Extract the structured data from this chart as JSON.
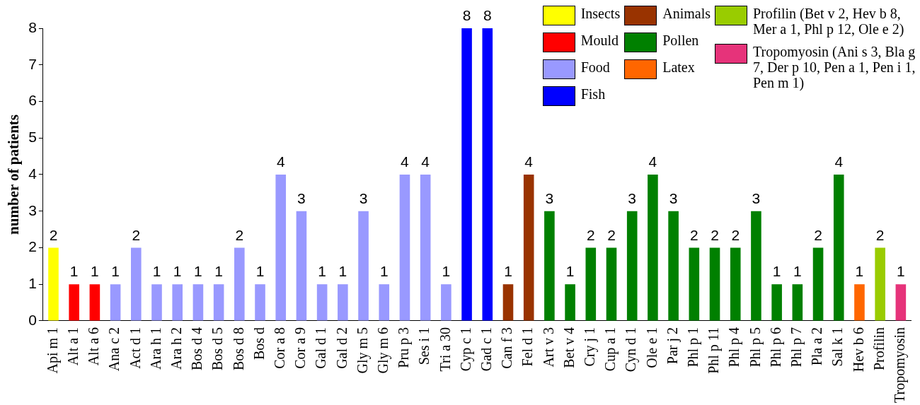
{
  "chart_data": {
    "type": "bar",
    "ylabel": "number of patients",
    "categories": [
      "Api m 1",
      "Alt a 1",
      "Alt a 6",
      "Ana c 2",
      "Act d 1",
      "Ara h 1",
      "Ara h 2",
      "Bos d 4",
      "Bos d 5",
      "Bos d 8",
      "Bos d",
      "Cor a 8",
      "Cor a 9",
      "Gal d 1",
      "Gal d 2",
      "Gly m 5",
      "Gly m 6",
      "Pru p 3",
      "Ses i 1",
      "Tri a 30",
      "Cyp c 1",
      "Gad c 1",
      "Can f 3",
      "Fel d 1",
      "Art v 3",
      "Bet v 4",
      "Cry j 1",
      "Cup a 1",
      "Cyn d 1",
      "Ole e 1",
      "Par j 2",
      "Phl p 1",
      "Phl p 11",
      "Phl p 4",
      "Phl p 5",
      "Phl p 6",
      "Phl p 7",
      "Pla a 2",
      "Sal k 1",
      "Hev b 6",
      "Profilin",
      "Tropomyosin"
    ],
    "series": [
      {
        "name": "Insects",
        "color": "#ffff00",
        "values": [
          2,
          null,
          null,
          null,
          null,
          null,
          null,
          null,
          null,
          null,
          null,
          null,
          null,
          null,
          null,
          null,
          null,
          null,
          null,
          null,
          null,
          null,
          null,
          null,
          null,
          null,
          null,
          null,
          null,
          null,
          null,
          null,
          null,
          null,
          null,
          null,
          null,
          null,
          null,
          null,
          null,
          null
        ]
      },
      {
        "name": "Mould",
        "color": "#ff0000",
        "values": [
          null,
          1,
          1,
          null,
          null,
          null,
          null,
          null,
          null,
          null,
          null,
          null,
          null,
          null,
          null,
          null,
          null,
          null,
          null,
          null,
          null,
          null,
          null,
          null,
          null,
          null,
          null,
          null,
          null,
          null,
          null,
          null,
          null,
          null,
          null,
          null,
          null,
          null,
          null,
          null,
          null,
          null
        ]
      },
      {
        "name": "Food",
        "color": "#9999ff",
        "values": [
          null,
          null,
          null,
          1,
          2,
          1,
          1,
          1,
          1,
          2,
          1,
          4,
          3,
          1,
          1,
          3,
          1,
          4,
          4,
          1,
          null,
          null,
          null,
          null,
          null,
          null,
          null,
          null,
          null,
          null,
          null,
          null,
          null,
          null,
          null,
          null,
          null,
          null,
          null,
          null,
          null,
          null
        ]
      },
      {
        "name": "Fish",
        "color": "#0000ff",
        "values": [
          null,
          null,
          null,
          null,
          null,
          null,
          null,
          null,
          null,
          null,
          null,
          null,
          null,
          null,
          null,
          null,
          null,
          null,
          null,
          null,
          8,
          8,
          null,
          null,
          null,
          null,
          null,
          null,
          null,
          null,
          null,
          null,
          null,
          null,
          null,
          null,
          null,
          null,
          null,
          null,
          null,
          null
        ]
      },
      {
        "name": "Animals",
        "color": "#993300",
        "values": [
          null,
          null,
          null,
          null,
          null,
          null,
          null,
          null,
          null,
          null,
          null,
          null,
          null,
          null,
          null,
          null,
          null,
          null,
          null,
          null,
          null,
          null,
          1,
          4,
          null,
          null,
          null,
          null,
          null,
          null,
          null,
          null,
          null,
          null,
          null,
          null,
          null,
          null,
          null,
          null,
          null,
          null
        ]
      },
      {
        "name": "Pollen",
        "color": "#008000",
        "values": [
          null,
          null,
          null,
          null,
          null,
          null,
          null,
          null,
          null,
          null,
          null,
          null,
          null,
          null,
          null,
          null,
          null,
          null,
          null,
          null,
          null,
          null,
          null,
          null,
          3,
          1,
          2,
          2,
          3,
          4,
          3,
          2,
          2,
          2,
          3,
          1,
          1,
          2,
          4,
          null,
          null,
          null
        ]
      },
      {
        "name": "Latex",
        "color": "#ff6600",
        "values": [
          null,
          null,
          null,
          null,
          null,
          null,
          null,
          null,
          null,
          null,
          null,
          null,
          null,
          null,
          null,
          null,
          null,
          null,
          null,
          null,
          null,
          null,
          null,
          null,
          null,
          null,
          null,
          null,
          null,
          null,
          null,
          null,
          null,
          null,
          null,
          null,
          null,
          null,
          null,
          1,
          null,
          null
        ]
      },
      {
        "name": "Profilin (Bet v 2, Hev b 8, Mer a 1, Phl p 12, Ole e 2)",
        "color": "#99cc00",
        "values": [
          null,
          null,
          null,
          null,
          null,
          null,
          null,
          null,
          null,
          null,
          null,
          null,
          null,
          null,
          null,
          null,
          null,
          null,
          null,
          null,
          null,
          null,
          null,
          null,
          null,
          null,
          null,
          null,
          null,
          null,
          null,
          null,
          null,
          null,
          null,
          null,
          null,
          null,
          null,
          null,
          2,
          null
        ]
      },
      {
        "name": "Tropomyosin (Ani s 3, Bla g 7, Der p 10, Pen a 1, Pen i 1, Pen m 1)",
        "color": "#e6337a",
        "values": [
          null,
          null,
          null,
          null,
          null,
          null,
          null,
          null,
          null,
          null,
          null,
          null,
          null,
          null,
          null,
          null,
          null,
          null,
          null,
          null,
          null,
          null,
          null,
          null,
          null,
          null,
          null,
          null,
          null,
          null,
          null,
          null,
          null,
          null,
          null,
          null,
          null,
          null,
          null,
          null,
          null,
          1
        ]
      }
    ],
    "ylim": [
      0,
      8
    ],
    "yticks": [
      0,
      1,
      2,
      3,
      4,
      5,
      6,
      7,
      8
    ],
    "data_labels": true,
    "legend": "top right"
  }
}
